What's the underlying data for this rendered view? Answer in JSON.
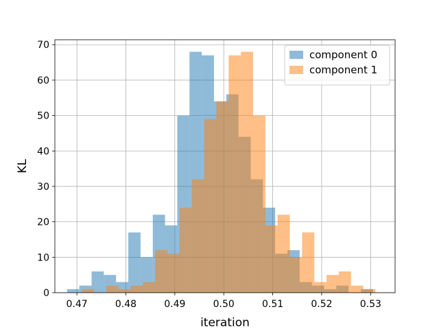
{
  "chart_data": {
    "type": "bar",
    "subtype": "overlapping-histogram",
    "title": "",
    "xlabel": "iteration",
    "ylabel": "KL",
    "xlim": [
      0.4655,
      0.535
    ],
    "ylim": [
      0,
      71.4
    ],
    "x_ticks": [
      "0.47",
      "0.48",
      "0.49",
      "0.50",
      "0.51",
      "0.52",
      "0.53"
    ],
    "x_tick_values": [
      0.47,
      0.48,
      0.49,
      0.5,
      0.51,
      0.52,
      0.53
    ],
    "y_ticks": [
      "0",
      "10",
      "20",
      "30",
      "40",
      "50",
      "60",
      "70"
    ],
    "y_tick_values": [
      0,
      10,
      20,
      30,
      40,
      50,
      60,
      70
    ],
    "grid": true,
    "legend_position": "top-right",
    "series": [
      {
        "name": "component 0",
        "color": "#1f77b4",
        "opacity": 0.5,
        "bin_start": 0.468,
        "bin_width": 0.0025,
        "counts": [
          1,
          2,
          6,
          5,
          3,
          17,
          10,
          22,
          19,
          50,
          68,
          67,
          54,
          56,
          44,
          32,
          24,
          11,
          12,
          3,
          2,
          1,
          2,
          0,
          1
        ]
      },
      {
        "name": "component 1",
        "color": "#ff7f0e",
        "opacity": 0.5,
        "bin_start": 0.471,
        "bin_width": 0.0025,
        "counts": [
          1,
          0,
          2,
          1,
          2,
          3,
          12,
          11,
          24,
          32,
          49,
          54,
          67,
          68,
          50,
          19,
          22,
          10,
          17,
          3,
          5,
          6,
          2,
          1
        ]
      }
    ]
  }
}
